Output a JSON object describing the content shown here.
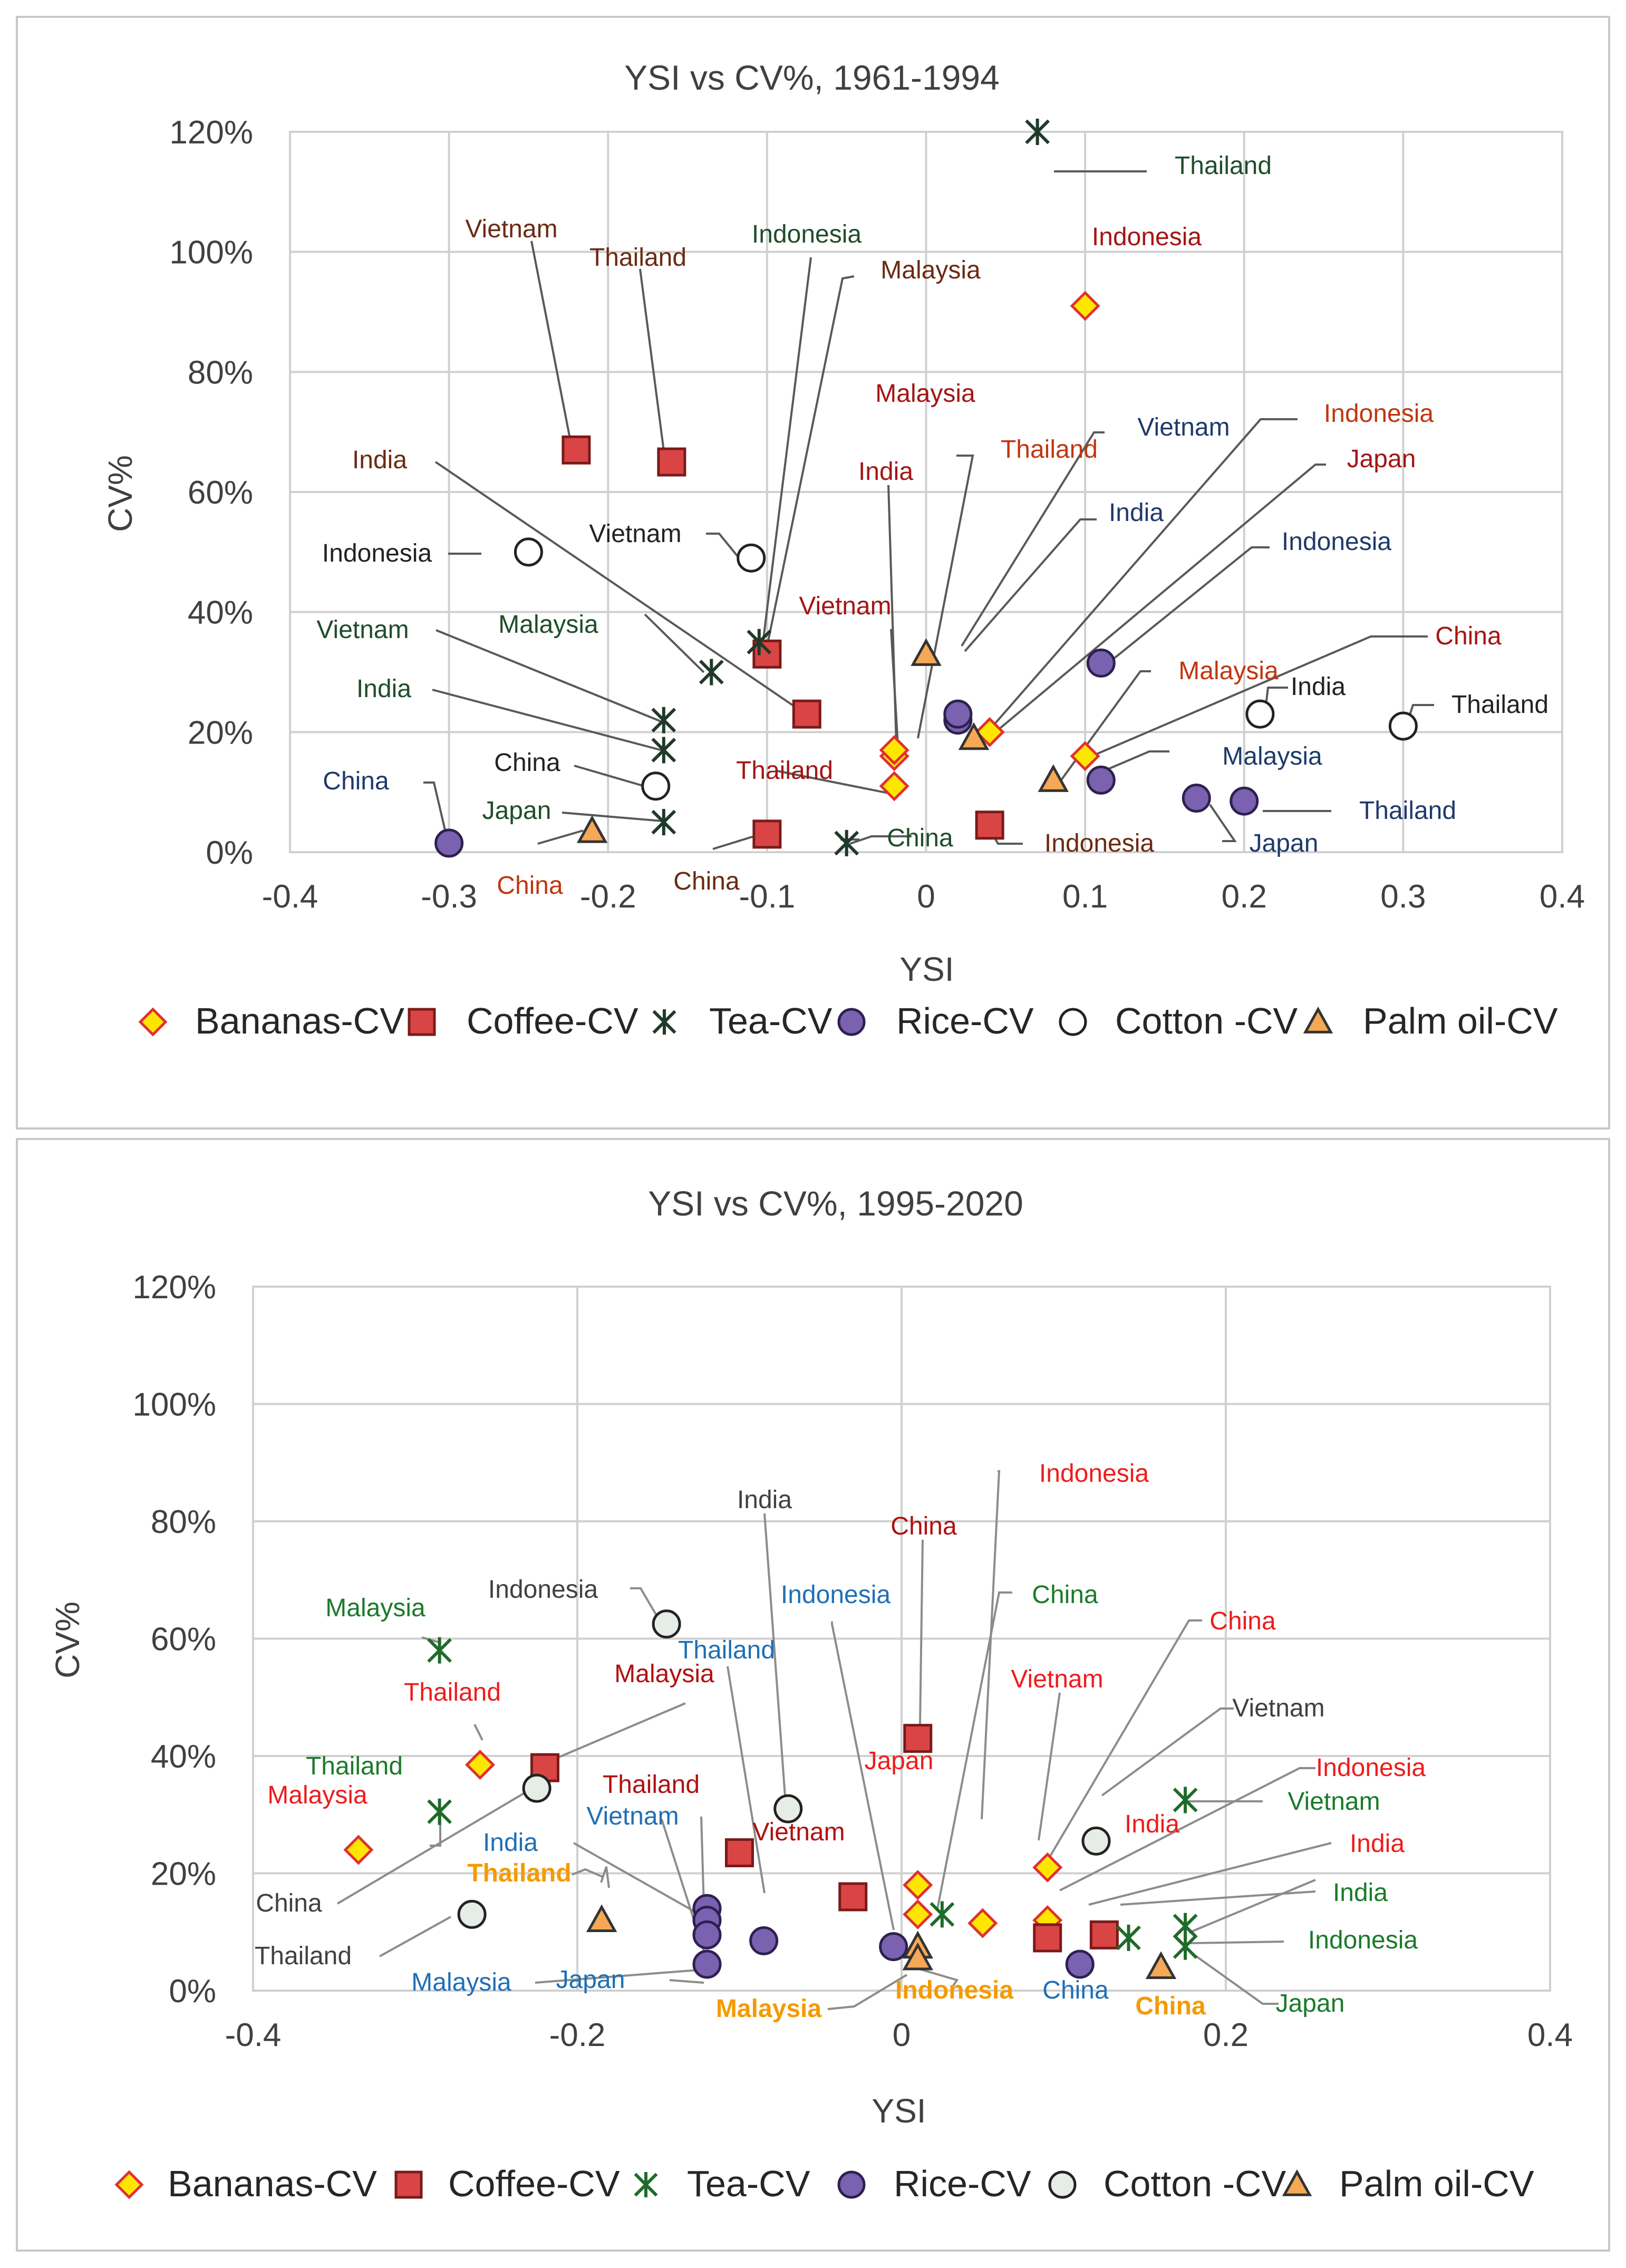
{
  "colors": {
    "bananas_fill": "#ffe600",
    "bananas_stroke": "#e03030",
    "coffee_fill": "#d94545",
    "coffee_stroke": "#7a1a1a",
    "tea": "#1f3a2a",
    "tea2": "#1f6b2a",
    "rice_fill": "#7a62b0",
    "rice_stroke": "#2e2050",
    "cotton_fill": "#ffffff",
    "cotton2_fill": "#e6ece6",
    "cotton_stroke": "#222222",
    "palm_fill": "#f5a855",
    "palm_stroke": "#333333"
  },
  "chart_data": [
    {
      "type": "scatter",
      "title": "YSI vs CV%, 1961-1994",
      "xlabel": "YSI",
      "ylabel": "CV%",
      "xlim": [
        -0.4,
        0.4
      ],
      "ylim": [
        0,
        1.2
      ],
      "xticks": [
        -0.4,
        -0.3,
        -0.2,
        -0.1,
        0,
        0.1,
        0.2,
        0.3,
        0.4
      ],
      "xtick_labels": [
        "-0.4",
        "-0.3",
        "-0.2",
        "-0.1",
        "0",
        "0.1",
        "0.2",
        "0.3",
        "0.4"
      ],
      "yticks": [
        0,
        0.2,
        0.4,
        0.6,
        0.8,
        1.0,
        1.2
      ],
      "ytick_labels": [
        "0%",
        "20%",
        "40%",
        "60%",
        "80%",
        "100%",
        "120%"
      ],
      "legend": [
        "Bananas-CV",
        "Coffee-CV",
        "Tea-CV",
        "Rice-CV",
        "Cotton -CV",
        "Palm oil-CV"
      ],
      "legend_position": "bottom",
      "series": [
        {
          "name": "Bananas-CV",
          "marker": "diamond",
          "points": [
            {
              "label": "Indonesia",
              "x": 0.1,
              "y": 0.91,
              "color": "#a31515"
            },
            {
              "label": "Japan",
              "x": 0.04,
              "y": 0.2,
              "color": "#a31515"
            },
            {
              "label": "China",
              "x": 0.1,
              "y": 0.16,
              "color": "#a31515"
            },
            {
              "label": "Vietnam",
              "x": -0.02,
              "y": 0.16,
              "color": "#a31515"
            },
            {
              "label": "Thailand",
              "x": -0.02,
              "y": 0.11,
              "color": "#a31515"
            },
            {
              "label": "Malaysia",
              "x": -0.02,
              "y": 0.17,
              "color": "#c0360f"
            }
          ]
        },
        {
          "name": "Coffee-CV",
          "marker": "square",
          "points": [
            {
              "label": "Vietnam",
              "x": -0.22,
              "y": 0.67,
              "color": "#5a2a0a"
            },
            {
              "label": "Thailand",
              "x": -0.16,
              "y": 0.65,
              "color": "#5a2a0a"
            },
            {
              "label": "Malaysia",
              "x": -0.1,
              "y": 0.33,
              "color": "#5a2a0a"
            },
            {
              "label": "India",
              "x": -0.075,
              "y": 0.23,
              "color": "#5a2a0a"
            },
            {
              "label": "China",
              "x": -0.1,
              "y": 0.03,
              "color": "#5a2a0a"
            },
            {
              "label": "Indonesia",
              "x": 0.04,
              "y": 0.045,
              "color": "#5a2a0a"
            }
          ]
        },
        {
          "name": "Tea-CV",
          "marker": "star",
          "points": [
            {
              "label": "Thailand",
              "x": 0.07,
              "y": 1.2,
              "color": "#1f4d2a"
            },
            {
              "label": "Indonesia",
              "x": -0.105,
              "y": 0.35,
              "color": "#1f4d2a"
            },
            {
              "label": "Malaysia",
              "x": -0.135,
              "y": 0.3,
              "color": "#1f4d2a"
            },
            {
              "label": "Vietnam",
              "x": -0.165,
              "y": 0.22,
              "color": "#1f4d2a"
            },
            {
              "label": "India",
              "x": -0.165,
              "y": 0.17,
              "color": "#1f4d2a"
            },
            {
              "label": "Japan",
              "x": -0.165,
              "y": 0.05,
              "color": "#1f4d2a"
            },
            {
              "label": "China",
              "x": -0.05,
              "y": 0.015,
              "color": "#1f4d2a"
            }
          ]
        },
        {
          "name": "Rice-CV",
          "marker": "circle",
          "points": [
            {
              "label": "China",
              "x": -0.3,
              "y": 0.015,
              "color": "#1f3a6b"
            },
            {
              "label": "Vietnam",
              "x": 0.02,
              "y": 0.22,
              "color": "#1f3a6b"
            },
            {
              "label": "India",
              "x": 0.02,
              "y": 0.23,
              "color": "#1f3a6b"
            },
            {
              "label": "Indonesia",
              "x": 0.11,
              "y": 0.315,
              "color": "#1f3a6b"
            },
            {
              "label": "Malaysia",
              "x": 0.11,
              "y": 0.12,
              "color": "#1f3a6b"
            },
            {
              "label": "Japan",
              "x": 0.17,
              "y": 0.09,
              "color": "#1f3a6b"
            },
            {
              "label": "Thailand",
              "x": 0.2,
              "y": 0.085,
              "color": "#1f3a6b"
            }
          ]
        },
        {
          "name": "Cotton -CV",
          "marker": "circle-open",
          "points": [
            {
              "label": "Indonesia",
              "x": -0.25,
              "y": 0.5,
              "color": "#222222"
            },
            {
              "label": "Vietnam",
              "x": -0.11,
              "y": 0.49,
              "color": "#222222"
            },
            {
              "label": "China",
              "x": -0.17,
              "y": 0.11,
              "color": "#222222"
            },
            {
              "label": "India",
              "x": 0.21,
              "y": 0.23,
              "color": "#222222"
            },
            {
              "label": "Thailand",
              "x": 0.3,
              "y": 0.21,
              "color": "#222222"
            }
          ]
        },
        {
          "name": "Palm oil-CV",
          "marker": "triangle",
          "points": [
            {
              "label": "China",
              "x": -0.21,
              "y": 0.035,
              "color": "#c0360f"
            },
            {
              "label": "Thailand",
              "x": 0.0,
              "y": 0.33,
              "color": "#c0360f"
            },
            {
              "label": "Indonesia",
              "x": 0.03,
              "y": 0.19,
              "color": "#c0360f"
            },
            {
              "label": "Malaysia",
              "x": 0.08,
              "y": 0.12,
              "color": "#c0360f"
            }
          ]
        }
      ]
    },
    {
      "type": "scatter",
      "title": "YSI vs CV%, 1995-2020",
      "xlabel": "YSI",
      "ylabel": "CV%",
      "xlim": [
        -0.4,
        0.4
      ],
      "ylim": [
        0,
        1.2
      ],
      "xticks": [
        -0.4,
        -0.2,
        0,
        0.2,
        0.4
      ],
      "xtick_labels": [
        "-0.4",
        "-0.2",
        "0",
        "0.2",
        "0.4"
      ],
      "yticks": [
        0,
        0.2,
        0.4,
        0.6,
        0.8,
        1.0,
        1.2
      ],
      "ytick_labels": [
        "0%",
        "20%",
        "40%",
        "60%",
        "80%",
        "100%",
        "120%"
      ],
      "legend": [
        "Bananas-CV",
        "Coffee-CV",
        "Tea-CV",
        "Rice-CV",
        "Cotton -CV",
        "Palm oil-CV"
      ],
      "legend_position": "bottom",
      "series": [
        {
          "name": "Bananas-CV",
          "marker": "diamond",
          "points": [
            {
              "label": "Malaysia",
              "x": -0.335,
              "y": 0.24,
              "color": "#ee1c1c"
            },
            {
              "label": "Thailand",
              "x": -0.26,
              "y": 0.385,
              "color": "#ee1c1c"
            },
            {
              "label": "Japan",
              "x": 0.01,
              "y": 0.18,
              "color": "#ee1c1c"
            },
            {
              "label": "China",
              "x": 0.01,
              "y": 0.13,
              "color": "#ee1c1c"
            },
            {
              "label": "Vietnam",
              "x": 0.05,
              "y": 0.115,
              "color": "#ee1c1c"
            },
            {
              "label": "Indonesia",
              "x": 0.09,
              "y": 0.21,
              "color": "#ee1c1c"
            },
            {
              "label": "India",
              "x": 0.09,
              "y": 0.12,
              "color": "#ee1c1c"
            }
          ]
        },
        {
          "name": "Coffee-CV",
          "marker": "square",
          "points": [
            {
              "label": "Malaysia",
              "x": -0.22,
              "y": 0.38,
              "color": "#b01010"
            },
            {
              "label": "Thailand",
              "x": -0.1,
              "y": 0.235,
              "color": "#b01010"
            },
            {
              "label": "Vietnam",
              "x": -0.03,
              "y": 0.16,
              "color": "#b01010"
            },
            {
              "label": "China",
              "x": 0.01,
              "y": 0.43,
              "color": "#b01010"
            },
            {
              "label": "Indonesia",
              "x": 0.09,
              "y": 0.09,
              "color": "#b01010"
            },
            {
              "label": "India",
              "x": 0.125,
              "y": 0.095,
              "color": "#b01010"
            }
          ]
        },
        {
          "name": "Tea-CV",
          "marker": "star",
          "points": [
            {
              "label": "Malaysia",
              "x": -0.285,
              "y": 0.58,
              "color": "#1b7a2a"
            },
            {
              "label": "Thailand",
              "x": -0.285,
              "y": 0.305,
              "color": "#1b7a2a"
            },
            {
              "label": "China",
              "x": 0.025,
              "y": 0.13,
              "color": "#1b7a2a"
            },
            {
              "label": "Vietnam",
              "x": 0.175,
              "y": 0.325,
              "color": "#1b7a2a"
            },
            {
              "label": "India",
              "x": 0.175,
              "y": 0.11,
              "color": "#1b7a2a"
            },
            {
              "label": "Indonesia",
              "x": 0.14,
              "y": 0.09,
              "color": "#1b7a2a"
            },
            {
              "label": "Japan",
              "x": 0.175,
              "y": 0.075,
              "color": "#1b7a2a"
            }
          ]
        },
        {
          "name": "Rice-CV",
          "marker": "circle",
          "points": [
            {
              "label": "Thailand",
              "x": -0.085,
              "y": 0.085,
              "color": "#1f6fb5"
            },
            {
              "label": "Vietnam",
              "x": -0.12,
              "y": 0.14,
              "color": "#1f6fb5"
            },
            {
              "label": "India",
              "x": -0.12,
              "y": 0.12,
              "color": "#1f6fb5"
            },
            {
              "label": "Malaysia",
              "x": -0.12,
              "y": 0.095,
              "color": "#1f6fb5"
            },
            {
              "label": "Japan",
              "x": -0.12,
              "y": 0.045,
              "color": "#1f6fb5"
            },
            {
              "label": "Indonesia",
              "x": -0.005,
              "y": 0.075,
              "color": "#1f6fb5"
            },
            {
              "label": "China",
              "x": 0.11,
              "y": 0.045,
              "color": "#1f6fb5"
            }
          ]
        },
        {
          "name": "Cotton -CV",
          "marker": "circle-open",
          "points": [
            {
              "label": "Indonesia",
              "x": -0.145,
              "y": 0.625,
              "color": "#333333"
            },
            {
              "label": "China",
              "x": -0.225,
              "y": 0.345,
              "color": "#333333"
            },
            {
              "label": "India",
              "x": -0.07,
              "y": 0.31,
              "color": "#333333"
            },
            {
              "label": "Thailand",
              "x": -0.265,
              "y": 0.13,
              "color": "#333333"
            },
            {
              "label": "Vietnam",
              "x": 0.12,
              "y": 0.255,
              "color": "#333333"
            }
          ]
        },
        {
          "name": "Palm oil-CV",
          "marker": "triangle",
          "points": [
            {
              "label": "Thailand",
              "x": -0.185,
              "y": 0.12,
              "color": "#f59a00"
            },
            {
              "label": "Malaysia",
              "x": 0.01,
              "y": 0.075,
              "color": "#f59a00"
            },
            {
              "label": "Indonesia",
              "x": 0.01,
              "y": 0.055,
              "color": "#f59a00"
            },
            {
              "label": "China",
              "x": 0.16,
              "y": 0.04,
              "color": "#f59a00"
            }
          ]
        }
      ]
    }
  ],
  "labels_top": {
    "vietnam_coffee": "Vietnam",
    "thailand_coffee": "Thailand",
    "indonesia_tea": "Indonesia",
    "malaysia_coffee": "Malaysia",
    "indonesia_banana": "Indonesia",
    "thailand_tea": "Thailand",
    "malaysia_banana": "Malaysia",
    "india_banana": "India",
    "thailand_palm": "Thailand",
    "vietnam_rice": "Vietnam",
    "indonesia_palm": "Indonesia",
    "japan_banana": "Japan",
    "india_rice": "India",
    "indonesia_rice": "Indonesia",
    "india_coffee": "India",
    "vietnam_cotton": "Vietnam",
    "indonesia_cotton": "Indonesia",
    "vietnam_banana": "Vietnam",
    "china_banana": "China",
    "malaysia_tea": "Malaysia",
    "vietnam_tea": "Vietnam",
    "malaysia_palm": "Malaysia",
    "india_tea": "India",
    "india_cotton": "India",
    "thailand_cotton": "Thailand",
    "thailand_banana": "Thailand",
    "malaysia_rice": "Malaysia",
    "china_cotton": "China",
    "china_rice": "China",
    "thailand_rice": "Thailand",
    "japan_tea": "Japan",
    "china_tea": "China",
    "indonesia_coffee": "Indonesia",
    "japan_rice": "Japan",
    "china_palm": "China",
    "china_coffee": "China"
  },
  "labels_bottom": {
    "indonesia_banana": "Indonesia",
    "india_cotton": "India",
    "china_coffee": "China",
    "indonesia_cotton": "Indonesia",
    "indonesia_rice": "Indonesia",
    "china_tea": "China",
    "china_banana": "China",
    "malaysia_tea": "Malaysia",
    "thailand_rice": "Thailand",
    "malaysia_coffee": "Malaysia",
    "vietnam_banana": "Vietnam",
    "thailand_banana": "Thailand",
    "vietnam_cotton": "Vietnam",
    "thailand_tea": "Thailand",
    "malaysia_banana": "Malaysia",
    "thailand_coffee": "Thailand",
    "indonesia_coffee": "Indonesia",
    "japan_banana": "Japan",
    "vietnam_tea": "Vietnam",
    "vietnam_rice": "Vietnam",
    "vietnam_coffee": "Vietnam",
    "india_banana": "India",
    "india_rice": "India",
    "india_coffee": "India",
    "thailand_palm": "Thailand",
    "india_tea": "India",
    "china_cotton": "China",
    "indonesia_tea": "Indonesia",
    "thailand_cotton": "Thailand",
    "malaysia_rice": "Malaysia",
    "japan_rice": "Japan",
    "malaysia_palm": "Malaysia",
    "indonesia_palm": "Indonesia",
    "china_rice": "China",
    "china_palm": "China",
    "japan_tea": "Japan"
  }
}
